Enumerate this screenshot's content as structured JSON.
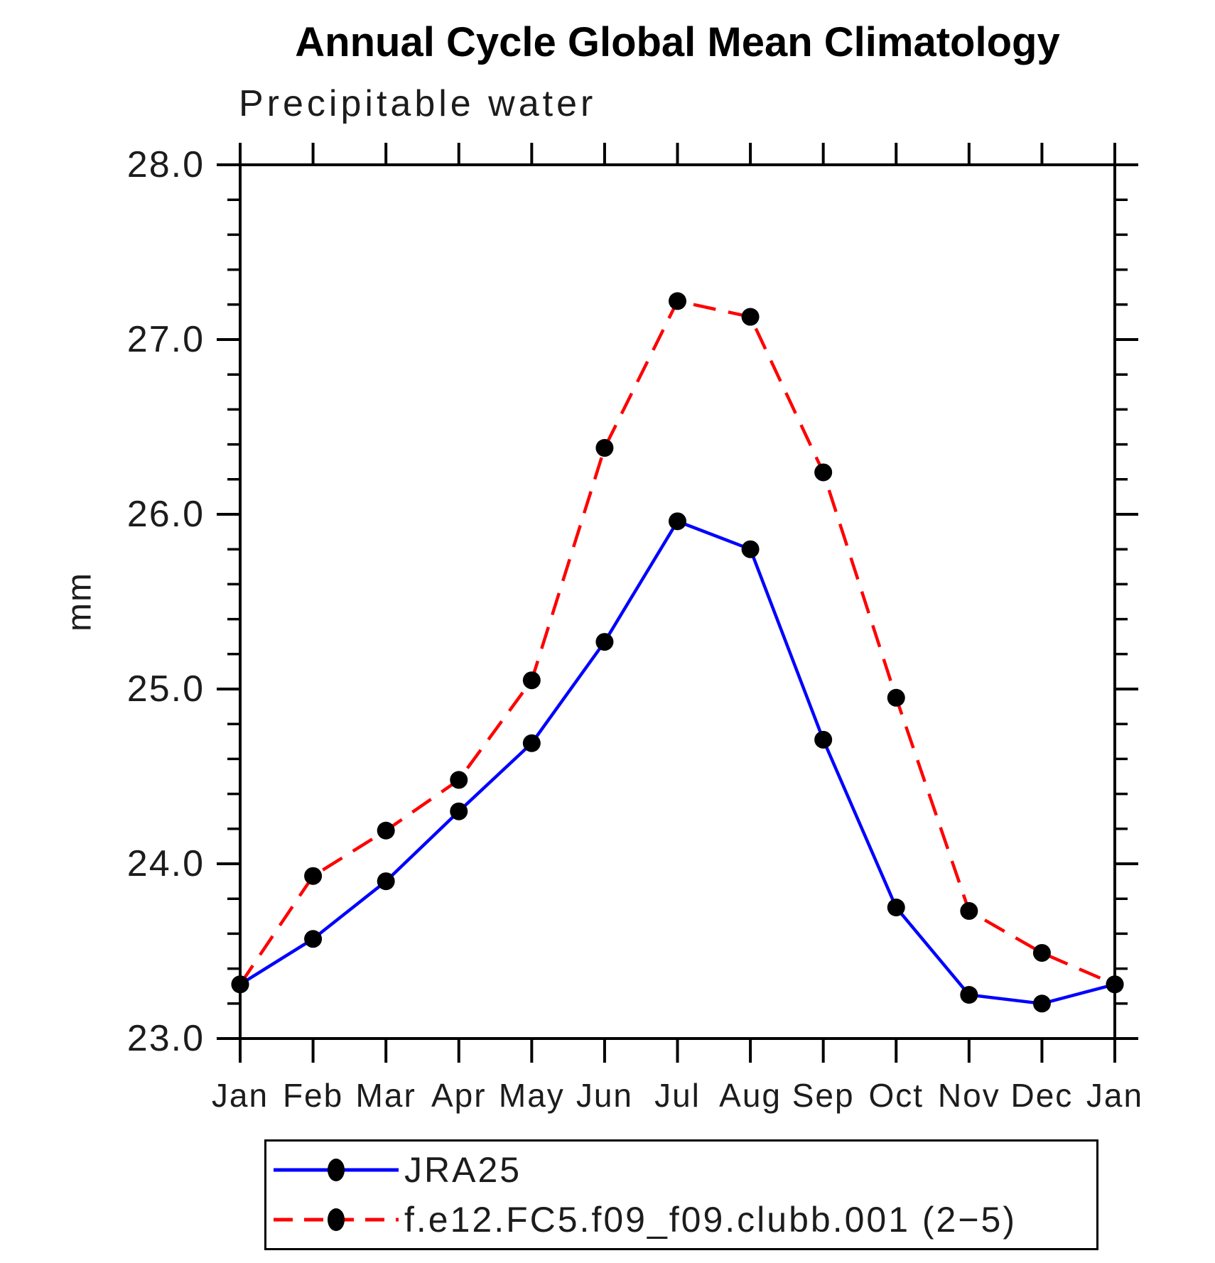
{
  "chart_data": {
    "type": "line",
    "title": "Annual Cycle Global Mean Climatology",
    "subtitle": "Precipitable water",
    "ylabel": "mm",
    "xlabel": "",
    "ylim": [
      23.0,
      28.0
    ],
    "ytick_major_step": 1.0,
    "ytick_minor_step": 0.2,
    "ytick_labels": [
      "23.0",
      "24.0",
      "25.0",
      "26.0",
      "27.0",
      "28.0"
    ],
    "categories": [
      "Jan",
      "Feb",
      "Mar",
      "Apr",
      "May",
      "Jun",
      "Jul",
      "Aug",
      "Sep",
      "Oct",
      "Nov",
      "Dec",
      "Jan"
    ],
    "grid": false,
    "legend_position": "bottom-left",
    "frame_color": "#000000",
    "series": [
      {
        "name": "JRA25",
        "line_color": "#0000ff",
        "line_style": "solid",
        "marker": "filled-circle",
        "marker_color": "#000000",
        "values": [
          23.31,
          23.57,
          23.9,
          24.3,
          24.69,
          25.27,
          25.96,
          25.8,
          24.71,
          23.75,
          23.25,
          23.2,
          23.31
        ]
      },
      {
        "name": "f.e12.FC5.f09_f09.clubb.001 (2−5)",
        "line_color": "#ff0000",
        "line_style": "dashed",
        "marker": "filled-circle",
        "marker_color": "#000000",
        "values": [
          23.31,
          23.93,
          24.19,
          24.48,
          25.05,
          26.38,
          27.22,
          27.13,
          26.24,
          24.95,
          23.73,
          23.49,
          23.31
        ]
      }
    ]
  }
}
